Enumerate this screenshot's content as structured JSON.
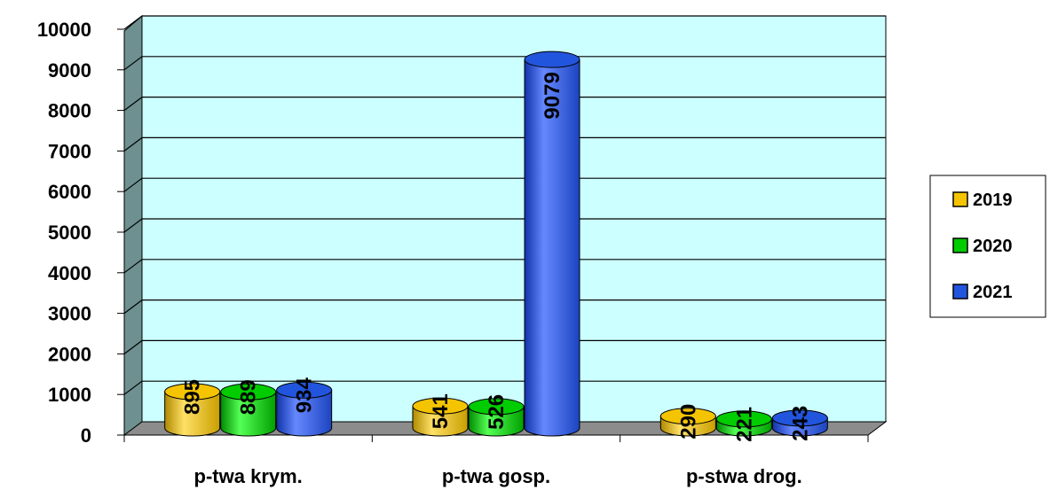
{
  "chart_data": {
    "type": "bar",
    "style": "3d-cylinder",
    "categories": [
      "p-twa krym.",
      "p-twa gosp.",
      "p-stwa drog."
    ],
    "series": [
      {
        "name": "2019",
        "color": "#f5c400",
        "values": [
          895,
          541,
          290
        ]
      },
      {
        "name": "2020",
        "color": "#00cc00",
        "values": [
          889,
          526,
          221
        ]
      },
      {
        "name": "2021",
        "color": "#2255dd",
        "values": [
          934,
          9079,
          243
        ]
      }
    ],
    "ylim": [
      0,
      10000
    ],
    "yticks": [
      0,
      1000,
      2000,
      3000,
      4000,
      5000,
      6000,
      7000,
      8000,
      9000,
      10000
    ],
    "grid": true,
    "legend_position": "right",
    "plot_background": "#ccffff",
    "data_labels": true
  }
}
